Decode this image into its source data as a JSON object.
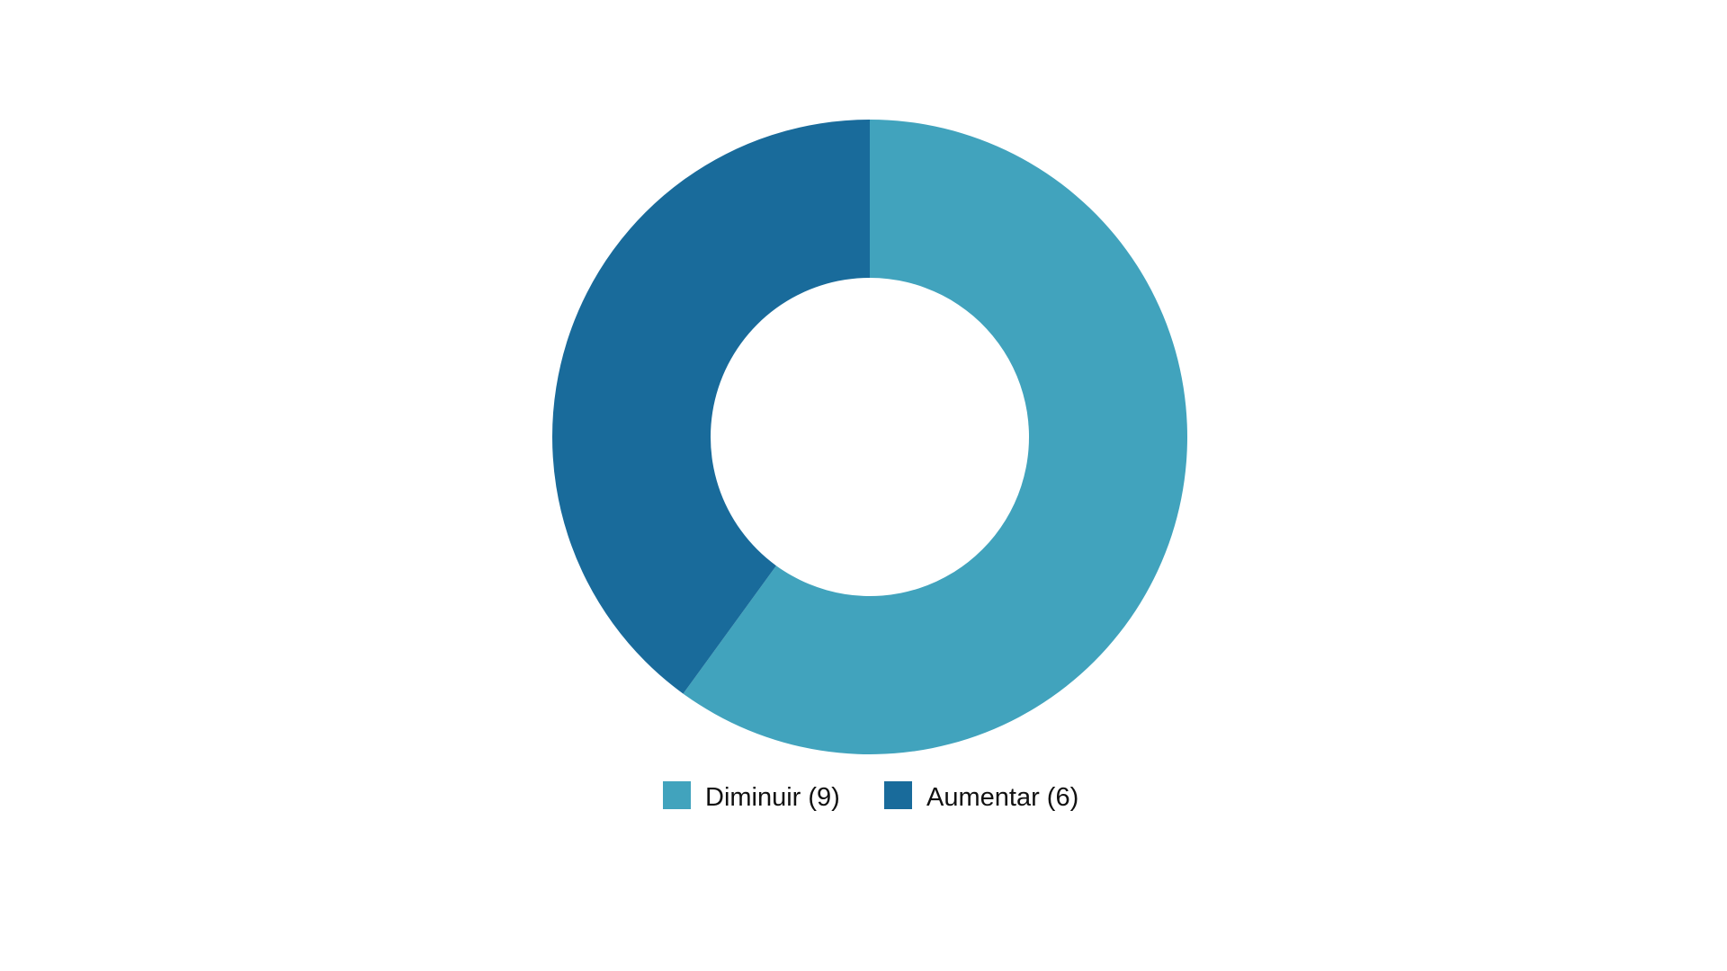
{
  "chart_data": {
    "type": "pie",
    "variant": "donut",
    "title": "",
    "categories": [
      "Diminuir",
      "Aumentar"
    ],
    "values": [
      9,
      6
    ],
    "colors": [
      "#41a3bd",
      "#196b9b"
    ],
    "legend": {
      "placement": "bottom",
      "items": [
        {
          "label": "Diminuir (9)",
          "color": "#41a3bd"
        },
        {
          "label": "Aumentar (6)",
          "color": "#196b9b"
        }
      ]
    },
    "start_angle_deg": 0,
    "direction": "clockwise"
  }
}
